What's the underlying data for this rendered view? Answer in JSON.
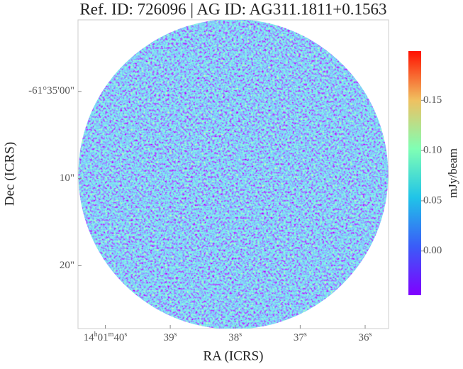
{
  "chart_data": {
    "type": "image",
    "title": "Ref. ID: 726096 | AG ID: AG311.1811+0.1563",
    "x_label": "RA (ICRS)",
    "y_label": "Dec (ICRS)",
    "colorbar_label": "mJy/beam",
    "xlim": [
      40.42,
      35.64
    ],
    "xticks": [
      {
        "value": 40,
        "label": [
          [
            "14",
            "h"
          ],
          [
            "01",
            "m"
          ],
          [
            "40",
            "s"
          ]
        ]
      },
      {
        "value": 39,
        "label": [
          [
            "39",
            "s"
          ]
        ]
      },
      {
        "value": 38,
        "label": [
          [
            "38",
            "s"
          ]
        ]
      },
      {
        "value": 37,
        "label": [
          [
            "37",
            "s"
          ]
        ]
      },
      {
        "value": 36,
        "label": [
          [
            "36",
            "s"
          ]
        ]
      }
    ],
    "ylim": [
      27.2,
      -8.2
    ],
    "yticks": [
      {
        "value": 0,
        "label": "-61°35'00\""
      },
      {
        "value": 10,
        "label": "10\""
      },
      {
        "value": 20,
        "label": "20\""
      }
    ],
    "clim": [
      -0.044,
      0.199
    ],
    "cticks": [
      {
        "value": 0,
        "label": "0.00"
      },
      {
        "value": 0.05,
        "label": "0.05"
      },
      {
        "value": 0.1,
        "label": "0.10"
      },
      {
        "value": 0.15,
        "label": "0.15"
      }
    ]
  }
}
